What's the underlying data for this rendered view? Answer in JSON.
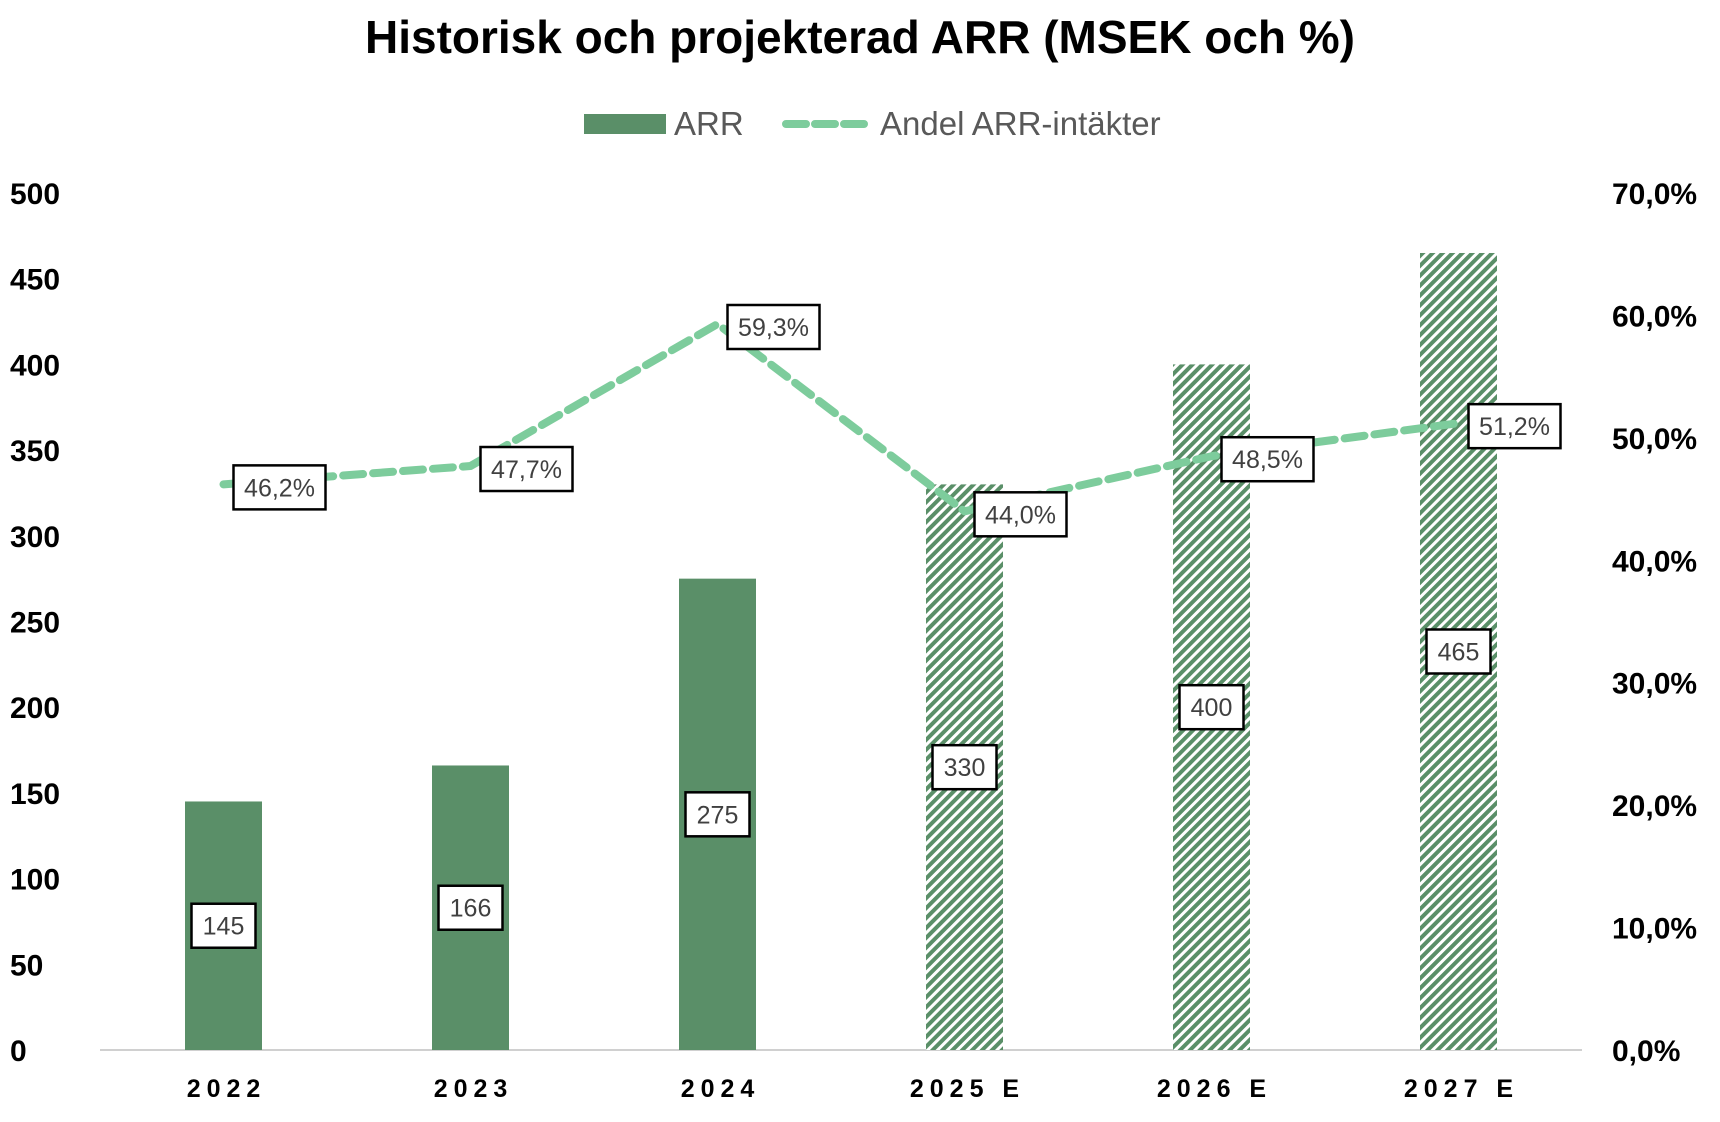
{
  "chart_data": {
    "type": "bar",
    "title": "Historisk och projekterad ARR (MSEK och %)",
    "categories": [
      "2022",
      "2023",
      "2024",
      "2025E",
      "2026E",
      "2027E"
    ],
    "x_tick_labels": [
      "2022",
      "2023",
      "2024",
      "2025 E",
      "2026 E",
      "2027 E"
    ],
    "projected": [
      false,
      false,
      false,
      true,
      true,
      true
    ],
    "series": [
      {
        "name": "ARR",
        "type": "bar",
        "axis": "left",
        "values": [
          145,
          166,
          275,
          330,
          400,
          465
        ],
        "labels": [
          "145",
          "166",
          "275",
          "330",
          "400",
          "465"
        ],
        "color": "#5a8f68",
        "projected_fill": "diagonal-hatch"
      },
      {
        "name": "Andel ARR-intäkter",
        "type": "line",
        "axis": "right",
        "style": "dashed",
        "values": [
          46.2,
          47.7,
          59.3,
          44.0,
          48.5,
          51.2
        ],
        "labels": [
          "46,2%",
          "47,7%",
          "59,3%",
          "44,0%",
          "48,5%",
          "51,2%"
        ],
        "color": "#7dcc9c"
      }
    ],
    "y_left": {
      "ylim": [
        0,
        500
      ],
      "ticks": [
        "0",
        "50",
        "100",
        "150",
        "200",
        "250",
        "300",
        "350",
        "400",
        "450",
        "500"
      ]
    },
    "y_right": {
      "ylim": [
        0,
        70
      ],
      "ticks": [
        "0,0%",
        "10,0%",
        "20,0%",
        "30,0%",
        "40,0%",
        "50,0%",
        "60,0%",
        "70,0%"
      ]
    },
    "legend": {
      "position": "top-center",
      "entries": [
        "ARR",
        "Andel ARR-intäkter"
      ]
    },
    "grid": false,
    "axis_color": "#d0d0d0"
  }
}
